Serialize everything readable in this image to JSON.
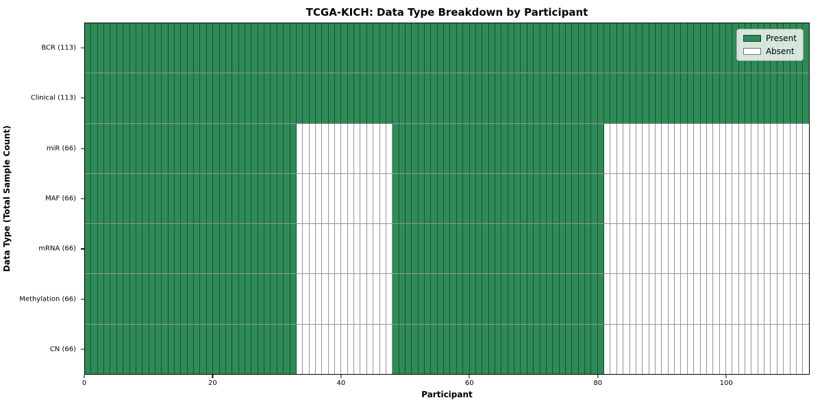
{
  "chart_data": {
    "type": "heatmap",
    "title": "TCGA-KICH: Data Type Breakdown by Participant",
    "xlabel": "Participant",
    "ylabel": "Data Type (Total Sample Count)",
    "n_participants": 113,
    "xlim": [
      0,
      113
    ],
    "x_ticks": [
      0,
      20,
      40,
      60,
      80,
      100
    ],
    "legend_position": "upper-right",
    "grid": "per-cell borders",
    "rows": [
      {
        "label": "BCR (113)",
        "data_type": "BCR",
        "sample_count": 113,
        "present_ranges": [
          [
            0,
            113
          ]
        ]
      },
      {
        "label": "Clinical (113)",
        "data_type": "Clinical",
        "sample_count": 113,
        "present_ranges": [
          [
            0,
            113
          ]
        ]
      },
      {
        "label": "miR (66)",
        "data_type": "miR",
        "sample_count": 66,
        "present_ranges": [
          [
            0,
            33
          ],
          [
            48,
            81
          ]
        ]
      },
      {
        "label": "MAF (66)",
        "data_type": "MAF",
        "sample_count": 66,
        "present_ranges": [
          [
            0,
            33
          ],
          [
            48,
            81
          ]
        ]
      },
      {
        "label": "mRNA (66)",
        "data_type": "mRNA",
        "sample_count": 66,
        "present_ranges": [
          [
            0,
            33
          ],
          [
            48,
            81
          ]
        ]
      },
      {
        "label": "Methylation (66)",
        "data_type": "Methylation",
        "sample_count": 66,
        "present_ranges": [
          [
            0,
            33
          ],
          [
            48,
            81
          ]
        ]
      },
      {
        "label": "CN (66)",
        "data_type": "CN",
        "sample_count": 66,
        "present_ranges": [
          [
            0,
            33
          ],
          [
            48,
            81
          ]
        ]
      }
    ],
    "legend": [
      {
        "label": "Present",
        "color": "#2e8b57"
      },
      {
        "label": "Absent",
        "color": "#ffffff"
      }
    ],
    "colors": {
      "present": "#2e8b57",
      "absent": "#ffffff",
      "cell_border": "rgba(0,0,0,0.42)",
      "spine": "#000000",
      "legend_border": "#b0b0b0"
    }
  }
}
